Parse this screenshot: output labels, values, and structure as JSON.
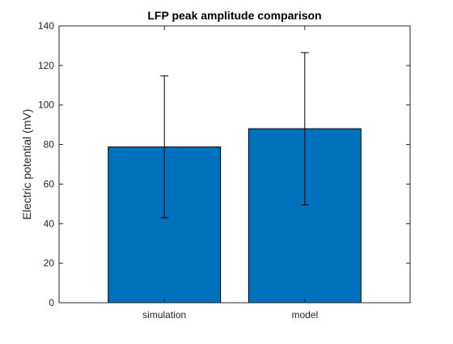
{
  "chart_data": {
    "type": "bar",
    "title": "LFP peak amplitude comparison",
    "xlabel": "",
    "ylabel": "Electric potential (mV)",
    "categories": [
      "simulation",
      "model"
    ],
    "values": [
      78.8,
      88.0
    ],
    "errors": {
      "lower": [
        43.0,
        49.5
      ],
      "upper": [
        114.7,
        126.5
      ]
    },
    "xlim": [
      0.25,
      2.75
    ],
    "ylim": [
      0,
      140
    ],
    "yticks": [
      0,
      20,
      40,
      60,
      80,
      100,
      120,
      140
    ],
    "bar_color": "#0072BD",
    "bar_edge_color": "#000000",
    "errorbar_color": "#000000",
    "grid": false,
    "box": true
  }
}
